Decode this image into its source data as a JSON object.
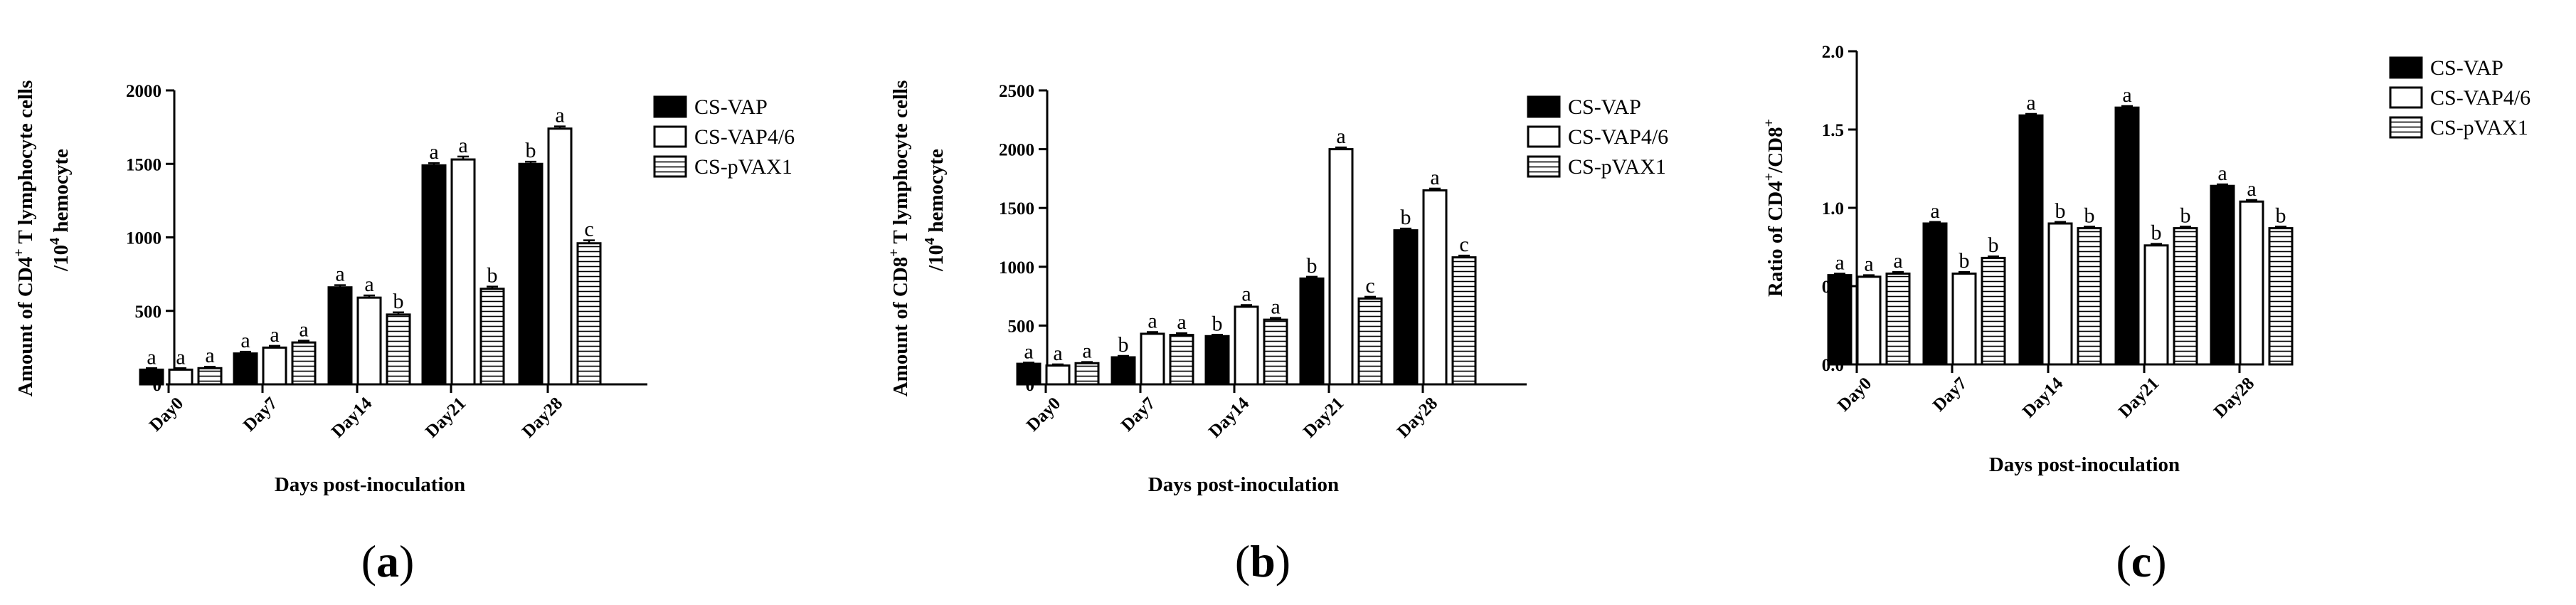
{
  "chart_data": [
    {
      "type": "bar",
      "panel_label": "a",
      "ylabel_line1": "Amount of CD4",
      "ylabel_sup1": "+",
      "ylabel_line1_rest": " T lymphocyte cells",
      "ylabel_line2": "/10",
      "ylabel_sup2": "4",
      "ylabel_line2_rest": "  hemocyte",
      "xlabel": "Days post-inoculation",
      "ylim": [
        0,
        2000
      ],
      "yticks": [
        0,
        500,
        1000,
        1500,
        2000
      ],
      "categories": [
        "Day0",
        "Day7",
        "Day14",
        "Day21",
        "Day28"
      ],
      "series": [
        {
          "name": "CS-VAP",
          "values": [
            100,
            210,
            660,
            1490,
            1500
          ],
          "errors": [
            10,
            12,
            15,
            15,
            15
          ],
          "letters": [
            "a",
            "a",
            "a",
            "a",
            "b"
          ]
        },
        {
          "name": "CS-VAP4/6",
          "values": [
            100,
            250,
            590,
            1530,
            1740
          ],
          "errors": [
            10,
            12,
            15,
            20,
            15
          ],
          "letters": [
            "a",
            "a",
            "a",
            "a",
            "a"
          ]
        },
        {
          "name": "CS-pVAX1",
          "values": [
            110,
            285,
            475,
            650,
            960
          ],
          "errors": [
            10,
            12,
            15,
            15,
            20
          ],
          "letters": [
            "a",
            "a",
            "b",
            "b",
            "c"
          ]
        }
      ]
    },
    {
      "type": "bar",
      "panel_label": "b",
      "ylabel_line1": "Amount of CD8",
      "ylabel_sup1": "+",
      "ylabel_line1_rest": " T lymphocyte cells",
      "ylabel_line2": "/10",
      "ylabel_sup2": "4",
      "ylabel_line2_rest": "  hemocyte",
      "xlabel": "Days post-inoculation",
      "ylim": [
        0,
        2500
      ],
      "yticks": [
        0,
        500,
        1000,
        1500,
        2000,
        2500
      ],
      "categories": [
        "Day0",
        "Day7",
        "Day14",
        "Day21",
        "Day28"
      ],
      "series": [
        {
          "name": "CS-VAP",
          "values": [
            175,
            230,
            410,
            900,
            1310
          ],
          "errors": [
            10,
            12,
            12,
            15,
            15
          ],
          "letters": [
            "a",
            "b",
            "b",
            "b",
            "b"
          ]
        },
        {
          "name": "CS-VAP4/6",
          "values": [
            160,
            430,
            660,
            2000,
            1650
          ],
          "errors": [
            10,
            15,
            15,
            15,
            15
          ],
          "letters": [
            "a",
            "a",
            "a",
            "a",
            "a"
          ]
        },
        {
          "name": "CS-pVAX1",
          "values": [
            180,
            420,
            550,
            730,
            1080
          ],
          "errors": [
            10,
            15,
            15,
            15,
            15
          ],
          "letters": [
            "a",
            "a",
            "a",
            "c",
            "c"
          ]
        }
      ]
    },
    {
      "type": "bar",
      "panel_label": "c",
      "ylabel_line1": "Ratio of CD4",
      "ylabel_sup1": "+",
      "ylabel_line1_rest": "/CD8",
      "ylabel_sup1b": "+",
      "xlabel": "Days post-inoculation",
      "ylim": [
        0,
        2.0
      ],
      "yticks": [
        "0.0",
        "0.5",
        "1.0",
        "1.5",
        "2.0"
      ],
      "categories": [
        "Day0",
        "Day7",
        "Day14",
        "Day21",
        "Day28"
      ],
      "series": [
        {
          "name": "CS-VAP",
          "values": [
            0.57,
            0.9,
            1.59,
            1.64,
            1.14
          ],
          "errors": [
            0.01,
            0.01,
            0.01,
            0.01,
            0.01
          ],
          "letters": [
            "a",
            "a",
            "a",
            "a",
            "a"
          ]
        },
        {
          "name": "CS-VAP4/6",
          "values": [
            0.56,
            0.58,
            0.9,
            0.76,
            1.04
          ],
          "errors": [
            0.01,
            0.01,
            0.01,
            0.01,
            0.01
          ],
          "letters": [
            "a",
            "b",
            "b",
            "b",
            "a"
          ]
        },
        {
          "name": "CS-pVAX1",
          "values": [
            0.58,
            0.68,
            0.87,
            0.87,
            0.87
          ],
          "errors": [
            0.01,
            0.01,
            0.01,
            0.01,
            0.01
          ],
          "letters": [
            "a",
            "b",
            "b",
            "b",
            "b"
          ]
        }
      ]
    }
  ],
  "colors": {
    "series0_fill": "#000000",
    "series1_fill": "#ffffff",
    "series2_fill": "hatch-horizontal"
  }
}
